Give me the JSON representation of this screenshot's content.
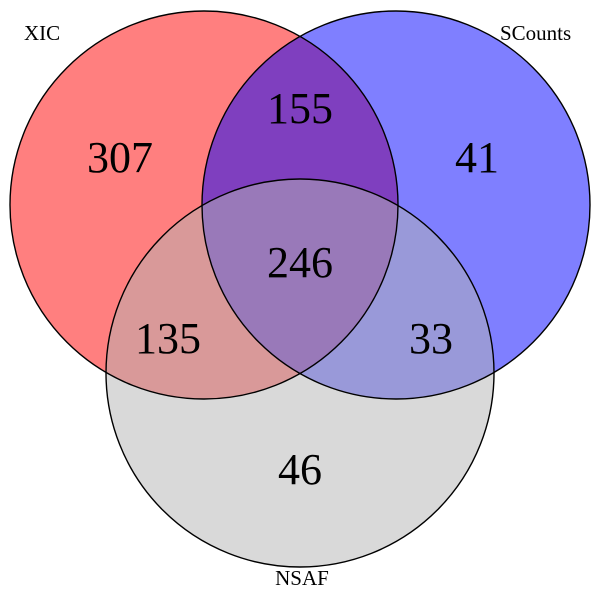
{
  "sets": {
    "xic": {
      "label": "XIC",
      "color": "#ff0000",
      "opacity": 0.5
    },
    "scounts": {
      "label": "SCounts",
      "color": "#0000ff",
      "opacity": 0.5
    },
    "nsaf": {
      "label": "NSAF",
      "color": "#b3b3b3",
      "opacity": 0.5
    }
  },
  "regions": {
    "xic_only": "307",
    "xic_scounts": "155",
    "scounts_only": "41",
    "all_three": "246",
    "xic_nsaf": "135",
    "scounts_nsaf": "33",
    "nsaf_only": "46"
  }
}
